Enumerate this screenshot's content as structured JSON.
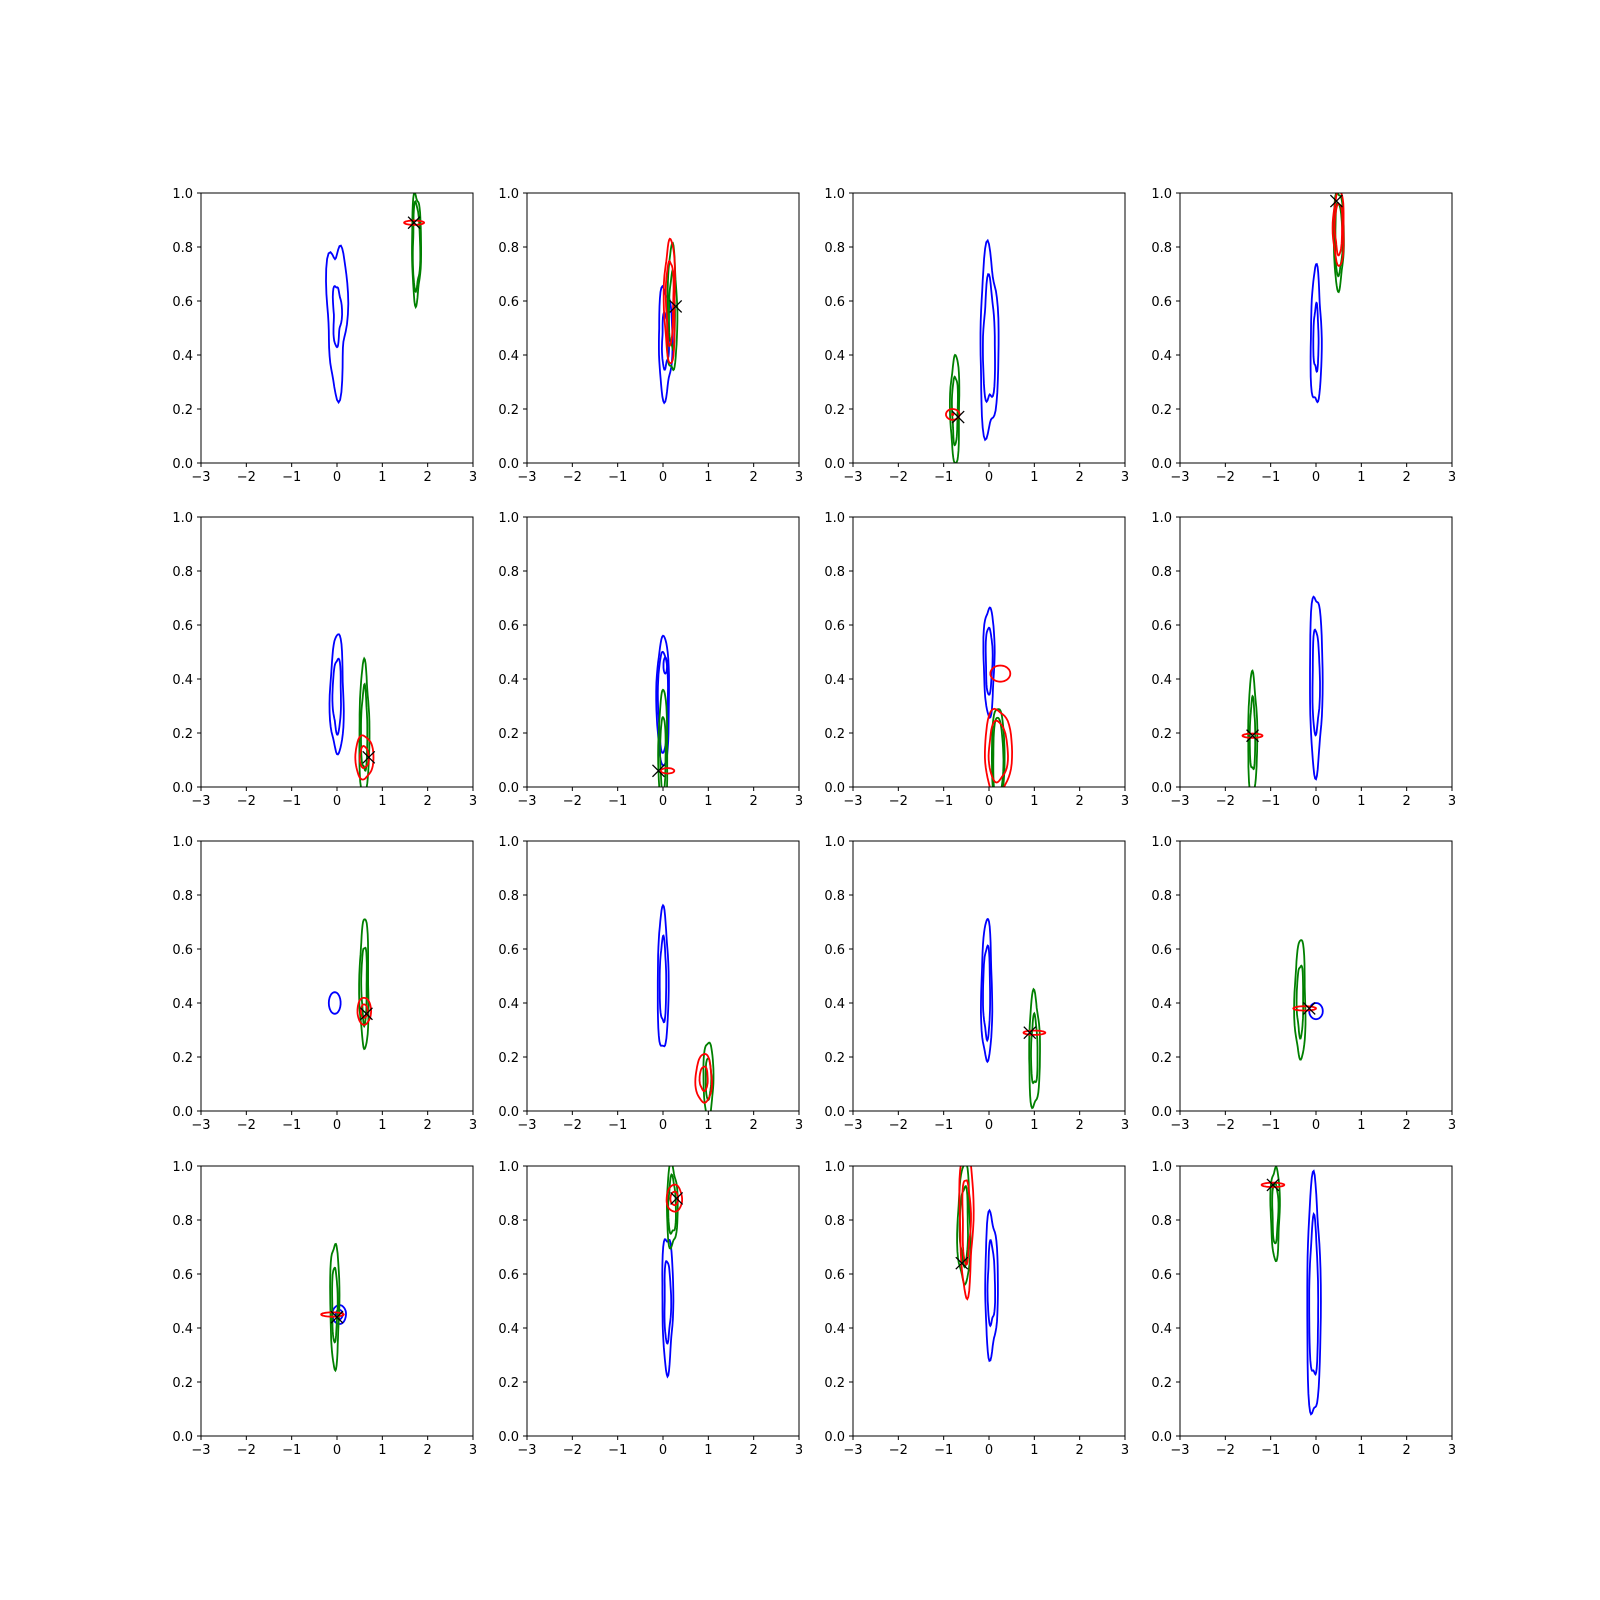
{
  "chart_data": {
    "type": "contour",
    "layout": {
      "rows": 4,
      "cols": 4
    },
    "shared_axes": {
      "xlim": [
        -3,
        3
      ],
      "ylim": [
        0,
        1
      ],
      "xticks": [
        -3,
        -2,
        -1,
        0,
        1,
        2,
        3
      ],
      "xtick_labels": [
        "−3",
        "−2",
        "−1",
        "0",
        "1",
        "2",
        "3"
      ],
      "yticks": [
        0,
        0.2,
        0.4,
        0.6,
        0.8,
        1.0
      ],
      "ytick_labels": [
        "0.0",
        "0.2",
        "0.4",
        "0.6",
        "0.8",
        "1.0"
      ],
      "grid": false,
      "legend": "none"
    },
    "colors": {
      "blue": "#0000ff",
      "green": "#008000",
      "red": "#ff0000",
      "marker": "#000000"
    },
    "panels": [
      {
        "blue": [
          [
            0.0,
            0.55,
            0.22,
            0.27,
            0.41,
            0.19
          ]
        ],
        "green": [
          [
            1.75,
            0.8,
            0.1,
            0.2,
            0.8,
            0.1
          ]
        ],
        "red": [
          [
            1.7,
            0.89,
            0.22,
            0.008,
            0,
            0.005
          ]
        ],
        "x": [
          1.7,
          0.89
        ]
      },
      {
        "blue": [
          [
            0.05,
            0.45,
            0.15,
            0.2,
            0.5,
            0.12
          ]
        ],
        "green": [
          [
            0.2,
            0.56,
            0.11,
            0.23,
            0.6,
            0.1
          ]
        ],
        "red": [
          [
            0.15,
            0.6,
            0.12,
            0.23,
            0.68,
            0.1
          ]
        ],
        "x": [
          0.28,
          0.58
        ]
      },
      {
        "blue": [
          [
            0.0,
            0.44,
            0.2,
            0.34,
            0.66,
            0.12
          ]
        ],
        "green": [
          [
            -0.75,
            0.2,
            0.1,
            0.2,
            0.63,
            0.1
          ]
        ],
        "red": [
          [
            -0.8,
            0.18,
            0.15,
            0.02,
            0.1,
            0.008
          ]
        ],
        "x": [
          -0.68,
          0.17
        ]
      },
      {
        "blue": [
          [
            0.0,
            0.46,
            0.12,
            0.25,
            0.48,
            0.1
          ]
        ],
        "green": [
          [
            0.5,
            0.83,
            0.11,
            0.18,
            0.74,
            0.08
          ]
        ],
        "red": [
          [
            0.5,
            0.87,
            0.12,
            0.14,
            0.68,
            0.08
          ]
        ],
        "x": [
          0.45,
          0.97
        ]
      },
      {
        "blue": [
          [
            0.0,
            0.34,
            0.15,
            0.22,
            0.62,
            0.09
          ]
        ],
        "green": [
          [
            0.6,
            0.21,
            0.11,
            0.24,
            0.64,
            0.09
          ]
        ],
        "red": [
          [
            0.6,
            0.11,
            0.2,
            0.08,
            0.5,
            0.05
          ]
        ],
        "x": [
          0.7,
          0.11
        ]
      },
      {
        "blue": [
          [
            0.0,
            0.32,
            0.14,
            0.24,
            0.78,
            0.06
          ],
          [
            0.05,
            0.45,
            0.04,
            0.03,
            0.0,
            0.0
          ]
        ],
        "green": [
          [
            0.0,
            0.12,
            0.1,
            0.24,
            0.6,
            0.05
          ]
        ],
        "red": [
          [
            0.1,
            0.06,
            0.15,
            0.01,
            0.0,
            0.006
          ]
        ],
        "x": [
          -0.1,
          0.06
        ]
      },
      {
        "blue": [
          [
            0.0,
            0.47,
            0.12,
            0.2,
            0.62,
            0.08
          ]
        ],
        "green": [
          [
            0.2,
            0.1,
            0.14,
            0.2,
            0.8,
            0.05
          ]
        ],
        "red": [
          [
            0.2,
            0.13,
            0.3,
            0.16,
            0.7,
            0.06
          ],
          [
            0.25,
            0.42,
            0.22,
            0.03,
            0.0,
            0.0
          ]
        ],
        "x": []
      },
      {
        "blue": [
          [
            0.0,
            0.39,
            0.14,
            0.33,
            0.58,
            0.08
          ]
        ],
        "green": [
          [
            -1.4,
            0.19,
            0.1,
            0.22,
            0.6,
            0.08
          ]
        ],
        "red": [
          [
            -1.4,
            0.19,
            0.22,
            0.008,
            0,
            0.005
          ]
        ],
        "x": [
          -1.4,
          0.19
        ]
      },
      {
        "blue": [
          [
            -0.05,
            0.4,
            0.13,
            0.04,
            0.0,
            0.0
          ]
        ],
        "green": [
          [
            0.6,
            0.47,
            0.1,
            0.24,
            0.6,
            0.1
          ]
        ],
        "red": [
          [
            0.6,
            0.37,
            0.15,
            0.05,
            0.5,
            0.02
          ]
        ],
        "x": [
          0.65,
          0.36
        ]
      },
      {
        "blue": [
          [
            0.0,
            0.48,
            0.12,
            0.26,
            0.6,
            0.07
          ]
        ],
        "green": [
          [
            1.0,
            0.12,
            0.11,
            0.14,
            0.55,
            0.06
          ]
        ],
        "red": [
          [
            0.9,
            0.12,
            0.18,
            0.09,
            0.5,
            0.05
          ]
        ],
        "x": []
      },
      {
        "blue": [
          [
            -0.05,
            0.44,
            0.12,
            0.26,
            0.65,
            0.08
          ]
        ],
        "green": [
          [
            1.0,
            0.22,
            0.12,
            0.21,
            0.6,
            0.09
          ]
        ],
        "red": [
          [
            1.0,
            0.29,
            0.24,
            0.008,
            0,
            0.005
          ]
        ],
        "x": [
          0.9,
          0.29
        ]
      },
      {
        "blue": [
          [
            0.0,
            0.37,
            0.15,
            0.03,
            0.0,
            0.0
          ]
        ],
        "green": [
          [
            -0.35,
            0.41,
            0.12,
            0.22,
            0.6,
            0.09
          ]
        ],
        "red": [
          [
            -0.25,
            0.38,
            0.25,
            0.008,
            0,
            0.005
          ]
        ],
        "x": [
          -0.15,
          0.38
        ]
      },
      {
        "blue": [
          [
            0.05,
            0.45,
            0.15,
            0.035,
            0.5,
            0.015
          ]
        ],
        "green": [
          [
            -0.05,
            0.49,
            0.1,
            0.23,
            0.6,
            0.08
          ]
        ],
        "red": [
          [
            -0.1,
            0.45,
            0.25,
            0.008,
            0,
            0.005
          ]
        ],
        "x": [
          0.0,
          0.44
        ]
      },
      {
        "blue": [
          [
            0.1,
            0.5,
            0.12,
            0.25,
            0.6,
            0.1
          ]
        ],
        "green": [
          [
            0.2,
            0.85,
            0.12,
            0.15,
            0.7,
            0.1
          ]
        ],
        "red": [
          [
            0.25,
            0.88,
            0.17,
            0.05,
            0.5,
            0.03
          ]
        ],
        "x": [
          0.3,
          0.88
        ]
      },
      {
        "blue": [
          [
            0.05,
            0.56,
            0.14,
            0.26,
            0.58,
            0.1
          ]
        ],
        "green": [
          [
            -0.55,
            0.78,
            0.14,
            0.22,
            0.65,
            0.1
          ]
        ],
        "red": [
          [
            -0.5,
            0.8,
            0.15,
            0.26,
            0.6,
            0.12
          ]
        ],
        "x": [
          -0.6,
          0.64
        ]
      },
      {
        "blue": [
          [
            -0.05,
            0.5,
            0.15,
            0.44,
            0.66,
            0.08
          ]
        ],
        "green": [
          [
            -0.9,
            0.83,
            0.1,
            0.17,
            0.66,
            0.1
          ]
        ],
        "red": [
          [
            -0.95,
            0.93,
            0.25,
            0.008,
            0,
            0.005
          ]
        ],
        "x": [
          -0.95,
          0.93
        ]
      }
    ]
  }
}
